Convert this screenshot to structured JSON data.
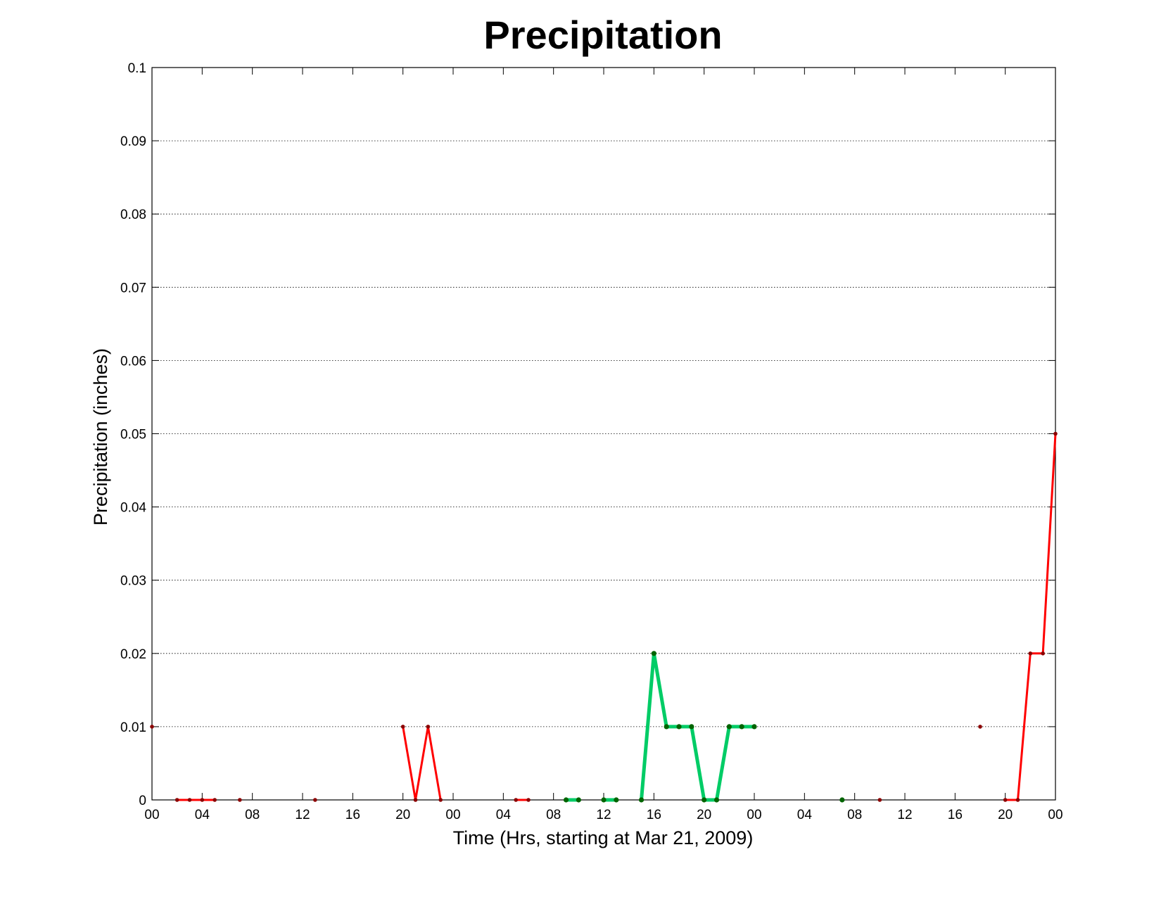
{
  "chart_data": {
    "type": "line",
    "title": "Precipitation",
    "xlabel": "Time (Hrs, starting at Mar 21, 2009)",
    "ylabel": "Precipitation (inches)",
    "x_unit": "hours",
    "xlim": [
      0,
      72
    ],
    "ylim": [
      0,
      0.1
    ],
    "yticks": [
      0,
      0.01,
      0.02,
      0.03,
      0.04,
      0.05,
      0.06,
      0.07,
      0.08,
      0.09,
      0.1
    ],
    "ytick_labels": [
      "0",
      "0.01",
      "0.02",
      "0.03",
      "0.04",
      "0.05",
      "0.06",
      "0.07",
      "0.08",
      "0.09",
      "0.1"
    ],
    "xticks": [
      0,
      4,
      8,
      12,
      16,
      20,
      24,
      28,
      32,
      36,
      40,
      44,
      48,
      52,
      56,
      60,
      64,
      68,
      72
    ],
    "xtick_labels": [
      "00",
      "04",
      "08",
      "12",
      "16",
      "20",
      "00",
      "04",
      "08",
      "12",
      "16",
      "20",
      "00",
      "04",
      "08",
      "12",
      "16",
      "20",
      "00"
    ],
    "grid": "y-dotted",
    "series": [
      {
        "color": "#ff0000",
        "marker_color": "#8b0000",
        "segments": [
          [
            [
              0,
              0.01
            ]
          ],
          [
            [
              2,
              0
            ],
            [
              3,
              0
            ],
            [
              4,
              0
            ],
            [
              5,
              0
            ]
          ],
          [
            [
              7,
              0
            ]
          ],
          [
            [
              13,
              0
            ]
          ],
          [
            [
              20,
              0.01
            ],
            [
              21,
              0
            ],
            [
              22,
              0.01
            ],
            [
              23,
              0
            ]
          ],
          [
            [
              29,
              0
            ],
            [
              30,
              0
            ]
          ],
          [
            [
              58,
              0
            ]
          ],
          [
            [
              66,
              0.01
            ]
          ],
          [
            [
              68,
              0
            ],
            [
              69,
              0
            ],
            [
              70,
              0.02
            ],
            [
              71,
              0.02
            ],
            [
              72,
              0.05
            ]
          ]
        ]
      },
      {
        "color": "#00cc66",
        "marker_color": "#006400",
        "segments": [
          [
            [
              33,
              0
            ],
            [
              34,
              0
            ]
          ],
          [
            [
              36,
              0
            ],
            [
              37,
              0
            ]
          ],
          [
            [
              39,
              0
            ],
            [
              40,
              0.02
            ],
            [
              41,
              0.01
            ],
            [
              42,
              0.01
            ],
            [
              43,
              0.01
            ],
            [
              44,
              0
            ],
            [
              45,
              0
            ],
            [
              46,
              0.01
            ],
            [
              47,
              0.01
            ],
            [
              48,
              0.01
            ]
          ],
          [
            [
              55,
              0
            ]
          ]
        ]
      }
    ]
  }
}
